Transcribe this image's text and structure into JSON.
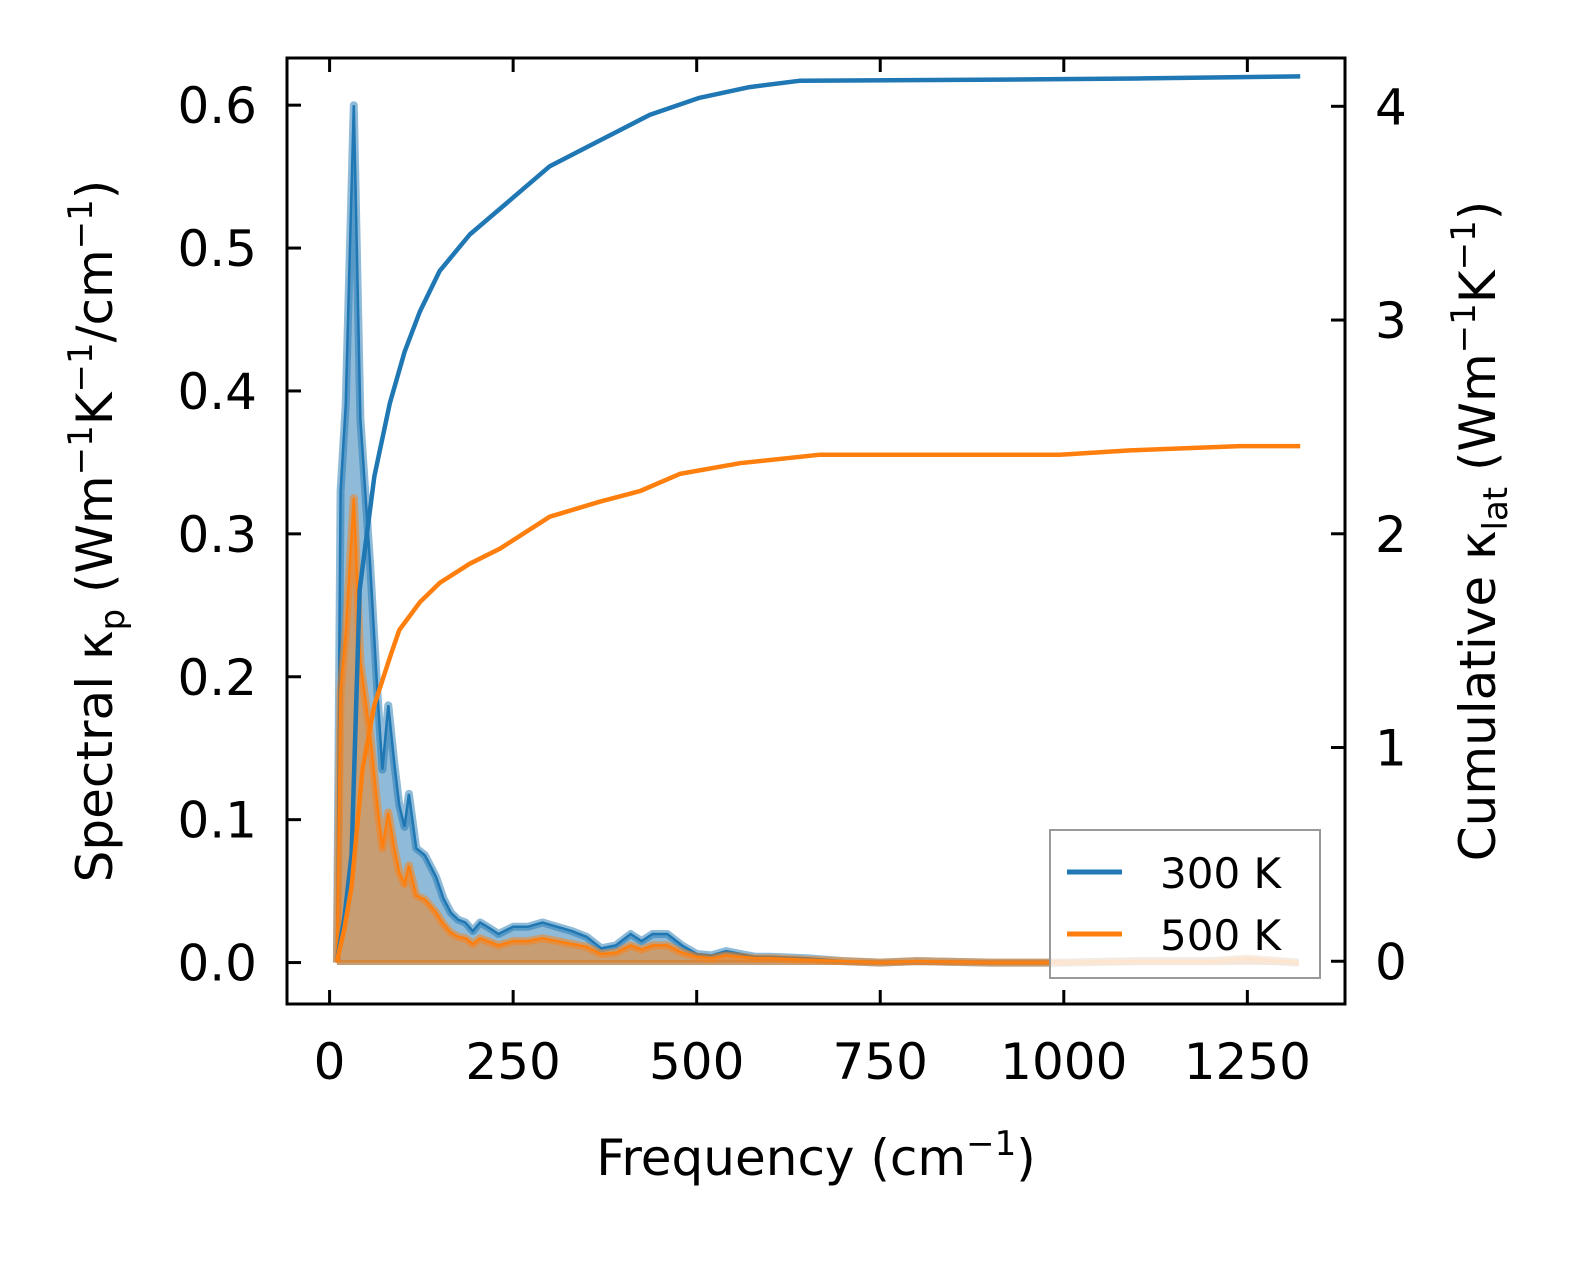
{
  "chart_data": {
    "type": "line",
    "xlabel": {
      "main": "Frequency (cm",
      "sup": "−1",
      "end": ")"
    },
    "ylabel_left": {
      "pre": "Spectral κ",
      "sub": "p",
      "mid": " (Wm",
      "s1": "−1",
      "k": "K",
      "s2": "−1",
      "u": "/cm",
      "s3": "−1",
      "end": ")"
    },
    "ylabel_right": {
      "pre": "Cumulative κ",
      "sub": "lat",
      "mid": " (Wm",
      "s1": "−1",
      "k": "K",
      "s2": "−1",
      "end": ")"
    },
    "xlim": [
      -58,
      1383
    ],
    "ylim_left": [
      -0.029,
      0.633
    ],
    "ylim_right": [
      -0.2,
      4.226
    ],
    "xticks": [
      0,
      250,
      500,
      750,
      1000,
      1250
    ],
    "xtick_labels": [
      "0",
      "250",
      "500",
      "750",
      "1000",
      "1250"
    ],
    "yticks_left": [
      0.0,
      0.1,
      0.2,
      0.3,
      0.4,
      0.5,
      0.6
    ],
    "ytick_labels_left": [
      "0.0",
      "0.1",
      "0.2",
      "0.3",
      "0.4",
      "0.5",
      "0.6"
    ],
    "yticks_right": [
      0,
      1,
      2,
      3,
      4
    ],
    "ytick_labels_right": [
      "0",
      "1",
      "2",
      "3",
      "4"
    ],
    "legend": {
      "placement": "lower-right",
      "entries": [
        "300 K",
        "500 K"
      ]
    },
    "grid": false,
    "series": [
      {
        "name": "300 K",
        "color": "#1f77b4",
        "spectral": {
          "x": [
            10,
            15,
            22,
            33,
            42,
            55,
            65,
            72,
            80,
            88,
            95,
            102,
            108,
            118,
            130,
            145,
            155,
            165,
            175,
            185,
            195,
            205,
            215,
            230,
            250,
            270,
            290,
            310,
            330,
            350,
            370,
            390,
            410,
            425,
            440,
            460,
            480,
            500,
            520,
            540,
            560,
            580,
            600,
            650,
            700,
            750,
            800,
            900,
            1000,
            1100,
            1200,
            1250,
            1320
          ],
          "y": [
            0,
            0.33,
            0.39,
            0.6,
            0.38,
            0.28,
            0.19,
            0.135,
            0.18,
            0.14,
            0.11,
            0.095,
            0.118,
            0.08,
            0.075,
            0.06,
            0.045,
            0.035,
            0.03,
            0.028,
            0.022,
            0.028,
            0.025,
            0.02,
            0.025,
            0.025,
            0.028,
            0.025,
            0.022,
            0.018,
            0.01,
            0.012,
            0.02,
            0.015,
            0.02,
            0.02,
            0.012,
            0.006,
            0.005,
            0.008,
            0.006,
            0.004,
            0.004,
            0.003,
            0.001,
            0,
            0.001,
            0,
            0,
            0.001,
            0.001,
            0.002,
            0
          ]
        },
        "cumulative": {
          "x": [
            10,
            20,
            30,
            41,
            61,
            82,
            102,
            123,
            150,
            191,
            232,
            300,
            368,
            436,
            504,
            572,
            641,
            913,
            1100,
            1322
          ],
          "y": [
            0,
            0.2,
            0.5,
            1.74,
            2.27,
            2.61,
            2.85,
            3.04,
            3.23,
            3.4,
            3.52,
            3.72,
            3.84,
            3.96,
            4.04,
            4.09,
            4.12,
            4.125,
            4.13,
            4.14
          ]
        }
      },
      {
        "name": "500 K",
        "color": "#ff7f0e",
        "spectral": {
          "x": [
            10,
            15,
            22,
            33,
            42,
            55,
            65,
            72,
            80,
            88,
            95,
            102,
            108,
            118,
            130,
            145,
            155,
            165,
            175,
            185,
            195,
            205,
            215,
            230,
            250,
            270,
            290,
            310,
            330,
            350,
            370,
            390,
            410,
            425,
            440,
            460,
            480,
            500,
            520,
            540,
            560,
            580,
            600,
            650,
            700,
            750,
            800,
            900,
            1000,
            1100,
            1200,
            1250,
            1320
          ],
          "y": [
            0,
            0.19,
            0.23,
            0.325,
            0.21,
            0.16,
            0.11,
            0.08,
            0.105,
            0.08,
            0.063,
            0.055,
            0.068,
            0.047,
            0.044,
            0.035,
            0.027,
            0.021,
            0.018,
            0.017,
            0.013,
            0.017,
            0.015,
            0.012,
            0.015,
            0.015,
            0.017,
            0.015,
            0.013,
            0.011,
            0.006,
            0.007,
            0.012,
            0.009,
            0.012,
            0.012,
            0.007,
            0.004,
            0.003,
            0.005,
            0.004,
            0.003,
            0.003,
            0.002,
            0.001,
            0,
            0.001,
            0,
            0,
            0.001,
            0.001,
            0.003,
            0
          ]
        },
        "cumulative": {
          "x": [
            10,
            20,
            30,
            45,
            61,
            82,
            95,
            123,
            150,
            191,
            232,
            300,
            368,
            423,
            477,
            559,
            668,
            995,
            1090,
            1240,
            1322
          ],
          "y": [
            0,
            0.15,
            0.35,
            0.9,
            1.2,
            1.42,
            1.55,
            1.68,
            1.77,
            1.86,
            1.93,
            2.08,
            2.15,
            2.2,
            2.28,
            2.33,
            2.37,
            2.37,
            2.39,
            2.41,
            2.41
          ]
        }
      }
    ]
  }
}
